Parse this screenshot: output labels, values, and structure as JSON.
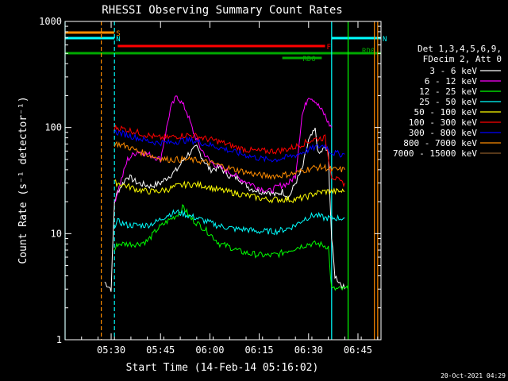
{
  "chart_data": {
    "type": "line",
    "title": "RHESSI Observing Summary Count Rates",
    "xlabel": "Start Time (14-Feb-14 05:16:02)",
    "ylabel": "Count Rate (s⁻¹ detector⁻¹)",
    "yscale": "log",
    "ylim": [
      1,
      1000
    ],
    "xlim": [
      "05:16",
      "06:52"
    ],
    "x_ticks": [
      "05:30",
      "05:45",
      "06:00",
      "06:15",
      "06:30",
      "06:45"
    ],
    "y_ticks": [
      "1",
      "10",
      "100",
      "1000"
    ],
    "grid": false,
    "legend_position": "right",
    "legend_header": [
      "Det 1,3,4,5,6,9,",
      "FDecim 2, Att 0"
    ],
    "footer": "20-Oct-2021 04:29",
    "flags": [
      {
        "label": "S",
        "start": "05:16",
        "end": "05:31",
        "color": "#ff8c00"
      },
      {
        "label": "N",
        "start": "05:16",
        "end": "05:31",
        "color": "#00ffff"
      },
      {
        "label": "N",
        "start": "06:37",
        "end": "06:52",
        "color": "#00ffff"
      },
      {
        "label": "F",
        "start": "05:32",
        "end": "06:35",
        "color": "#ff0000"
      },
      {
        "label": "RD0",
        "start": "05:16",
        "end": "06:52",
        "color": "#00aa00"
      },
      {
        "label": "RD6",
        "start": "06:22",
        "end": "06:34",
        "color": "#00aa00"
      }
    ],
    "vlines": [
      {
        "time": "05:27",
        "color": "#ff8c00",
        "style": "dashed"
      },
      {
        "time": "05:31",
        "color": "#00ffff",
        "style": "dashed"
      },
      {
        "time": "05:16",
        "color": "#00ffff",
        "style": "solid"
      },
      {
        "time": "06:37",
        "color": "#00ffff",
        "style": "solid"
      },
      {
        "time": "06:42",
        "color": "#00ff00",
        "style": "solid"
      },
      {
        "time": "06:50",
        "color": "#ff8c00",
        "style": "solid"
      },
      {
        "time": "06:51",
        "color": "#ff8c00",
        "style": "solid"
      }
    ],
    "series": [
      {
        "name": "3 - 6 keV",
        "color": "#ffffff",
        "x": [
          "05:28",
          "05:30",
          "05:31",
          "05:32",
          "05:35",
          "05:38",
          "05:42",
          "05:45",
          "05:50",
          "05:53",
          "05:56",
          "05:58",
          "06:00",
          "06:03",
          "06:06",
          "06:09",
          "06:12",
          "06:15",
          "06:18",
          "06:20",
          "06:22",
          "06:24",
          "06:26",
          "06:28",
          "06:30",
          "06:32",
          "06:33",
          "06:35",
          "06:36",
          "06:37",
          "06:38",
          "06:41"
        ],
        "values": [
          3.5,
          3,
          20,
          25,
          35,
          30,
          28,
          30,
          40,
          55,
          65,
          50,
          40,
          42,
          35,
          33,
          27,
          25,
          25,
          23,
          25,
          22,
          30,
          40,
          75,
          95,
          55,
          65,
          55,
          9,
          4,
          3
        ]
      },
      {
        "name": "6 - 12 keV",
        "color": "#ff00ff",
        "x": [
          "05:31",
          "05:32",
          "05:35",
          "05:38",
          "05:42",
          "05:45",
          "05:48",
          "05:50",
          "05:52",
          "05:53",
          "05:55",
          "05:57",
          "06:00",
          "06:03",
          "06:06",
          "06:09",
          "06:12",
          "06:15",
          "06:18",
          "06:21",
          "06:24",
          "06:26",
          "06:28",
          "06:30",
          "06:32",
          "06:33",
          "06:35",
          "06:36",
          "06:37"
        ],
        "values": [
          20,
          25,
          50,
          60,
          55,
          50,
          150,
          200,
          160,
          140,
          90,
          65,
          48,
          42,
          38,
          33,
          30,
          27,
          25,
          28,
          30,
          35,
          130,
          200,
          180,
          160,
          130,
          110,
          100
        ]
      },
      {
        "name": "12 - 25 keV",
        "color": "#00ff00",
        "x": [
          "05:31",
          "05:32",
          "05:35",
          "05:38",
          "05:41",
          "05:44",
          "05:47",
          "05:50",
          "05:52",
          "05:54",
          "05:57",
          "06:00",
          "06:03",
          "06:06",
          "06:09",
          "06:12",
          "06:15",
          "06:18",
          "06:21",
          "06:24",
          "06:27",
          "06:30",
          "06:33",
          "06:36",
          "06:37",
          "06:42"
        ],
        "values": [
          7,
          8,
          8,
          8,
          8.5,
          11,
          13,
          15,
          18,
          14,
          12,
          10,
          8,
          7.5,
          6.8,
          6.5,
          6.3,
          6.2,
          6.4,
          7,
          7.5,
          8,
          8,
          7.5,
          3,
          3
        ]
      },
      {
        "name": "25 - 50 keV",
        "color": "#00ffff",
        "x": [
          "05:31",
          "05:32",
          "05:35",
          "05:38",
          "05:41",
          "05:44",
          "05:47",
          "05:50",
          "05:53",
          "05:56",
          "05:59",
          "06:02",
          "06:05",
          "06:08",
          "06:11",
          "06:14",
          "06:17",
          "06:20",
          "06:23",
          "06:26",
          "06:29",
          "06:32",
          "06:35",
          "06:37",
          "06:40",
          "06:41"
        ],
        "values": [
          12,
          13,
          12,
          12,
          12,
          13,
          15,
          16,
          15,
          14,
          13,
          12,
          11.5,
          11,
          11,
          10.5,
          10.5,
          10.5,
          11,
          12,
          14,
          15,
          14,
          14,
          14,
          14
        ]
      },
      {
        "name": "50 - 100 keV",
        "color": "#ffff00",
        "x": [
          "05:31",
          "05:32",
          "05:35",
          "05:38",
          "05:41",
          "05:44",
          "05:47",
          "05:50",
          "05:53",
          "05:56",
          "05:59",
          "06:02",
          "06:05",
          "06:08",
          "06:11",
          "06:14",
          "06:17",
          "06:20",
          "06:23",
          "06:26",
          "06:29",
          "06:32",
          "06:35",
          "06:37",
          "06:40",
          "06:41"
        ],
        "values": [
          30,
          30,
          28,
          26,
          25,
          25,
          26,
          28,
          29,
          29,
          28,
          26,
          25,
          24,
          23,
          22,
          21,
          21,
          21,
          21,
          22,
          24,
          25,
          25,
          25,
          25
        ]
      },
      {
        "name": "100 - 300 keV",
        "color": "#ff0000",
        "x": [
          "05:31",
          "05:32",
          "05:35",
          "05:38",
          "05:41",
          "05:44",
          "05:47",
          "05:50",
          "05:53",
          "05:56",
          "05:59",
          "06:02",
          "06:05",
          "06:08",
          "06:11",
          "06:14",
          "06:17",
          "06:20",
          "06:23",
          "06:26",
          "06:29",
          "06:32",
          "06:35",
          "06:37",
          "06:40",
          "06:41"
        ],
        "values": [
          100,
          100,
          95,
          90,
          85,
          80,
          80,
          83,
          85,
          83,
          78,
          75,
          70,
          65,
          62,
          60,
          60,
          60,
          62,
          66,
          72,
          78,
          80,
          35,
          30,
          30
        ]
      },
      {
        "name": "300 - 800 keV",
        "color": "#0000ff",
        "x": [
          "05:31",
          "05:32",
          "05:35",
          "05:38",
          "05:41",
          "05:44",
          "05:47",
          "05:50",
          "05:53",
          "05:56",
          "05:59",
          "06:02",
          "06:05",
          "06:08",
          "06:11",
          "06:14",
          "06:17",
          "06:20",
          "06:23",
          "06:26",
          "06:29",
          "06:32",
          "06:35",
          "06:37",
          "06:40",
          "06:41"
        ],
        "values": [
          90,
          90,
          85,
          80,
          75,
          72,
          72,
          74,
          76,
          74,
          70,
          66,
          62,
          58,
          55,
          52,
          50,
          50,
          52,
          55,
          60,
          65,
          68,
          58,
          56,
          56
        ]
      },
      {
        "name": "800 - 7000 keV",
        "color": "#ff8c00",
        "x": [
          "05:31",
          "05:32",
          "05:35",
          "05:38",
          "05:41",
          "05:44",
          "05:47",
          "05:50",
          "05:53",
          "05:56",
          "05:59",
          "06:02",
          "06:05",
          "06:08",
          "06:11",
          "06:14",
          "06:17",
          "06:20",
          "06:23",
          "06:26",
          "06:29",
          "06:32",
          "06:35",
          "06:37",
          "06:40",
          "06:41"
        ],
        "values": [
          70,
          70,
          66,
          60,
          56,
          52,
          50,
          50,
          50,
          49,
          47,
          45,
          42,
          40,
          38,
          36,
          35,
          35,
          36,
          37,
          40,
          42,
          42,
          40,
          40,
          40
        ]
      },
      {
        "name": "7000 - 15000 keV",
        "color": "#8b5a2b",
        "x": [],
        "values": []
      }
    ]
  }
}
